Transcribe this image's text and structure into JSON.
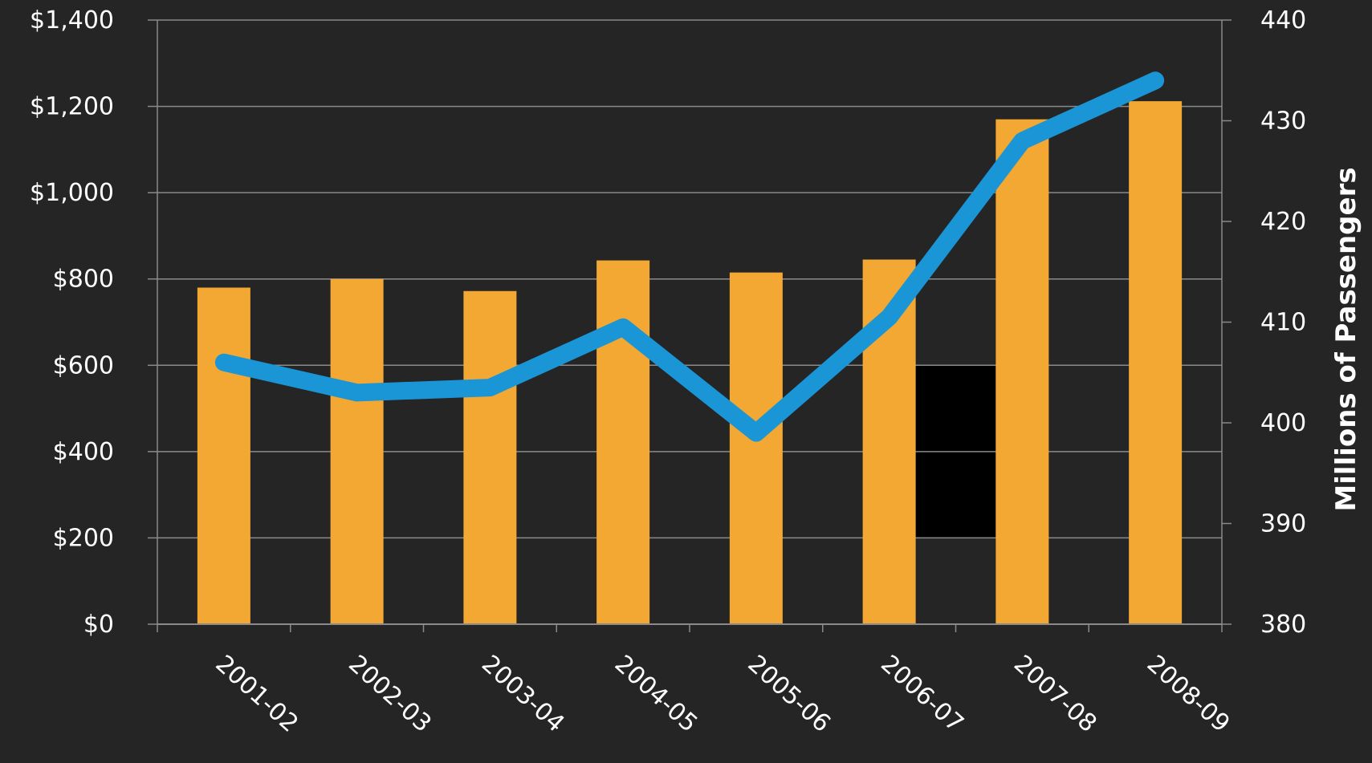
{
  "chart_data": {
    "type": "bar",
    "categories": [
      "2001-02",
      "2002-03",
      "2003-04",
      "2004-05",
      "2005-06",
      "2006-07",
      "2007-08",
      "2008-09"
    ],
    "y_left": {
      "ticks": [
        0,
        200,
        400,
        600,
        800,
        1000,
        1200,
        1400
      ],
      "tick_labels": [
        "$0",
        "$200",
        "$400",
        "$600",
        "$800",
        "$1,000",
        "$1,200",
        "$1,400"
      ],
      "range": [
        0,
        1400
      ]
    },
    "y_right": {
      "label": "Millions of Passengers",
      "ticks": [
        380,
        390,
        400,
        410,
        420,
        430,
        440
      ],
      "tick_labels": [
        "380",
        "390",
        "400",
        "410",
        "420",
        "430",
        "440"
      ],
      "range": [
        380,
        440
      ]
    },
    "series": [
      {
        "type": "bar",
        "axis": "left",
        "values": [
          780,
          800,
          772,
          843,
          815,
          845,
          1170,
          1212
        ]
      },
      {
        "type": "line",
        "axis": "right",
        "values": [
          406,
          403,
          403.5,
          409.5,
          399,
          410.5,
          428,
          434
        ]
      }
    ],
    "grid": true,
    "colors": {
      "background": "#252525",
      "bar": "#f2a833",
      "line": "#1a95d6",
      "grid": "#8a8a8a",
      "text": "#ffffff",
      "dark_block": "#000000"
    }
  }
}
